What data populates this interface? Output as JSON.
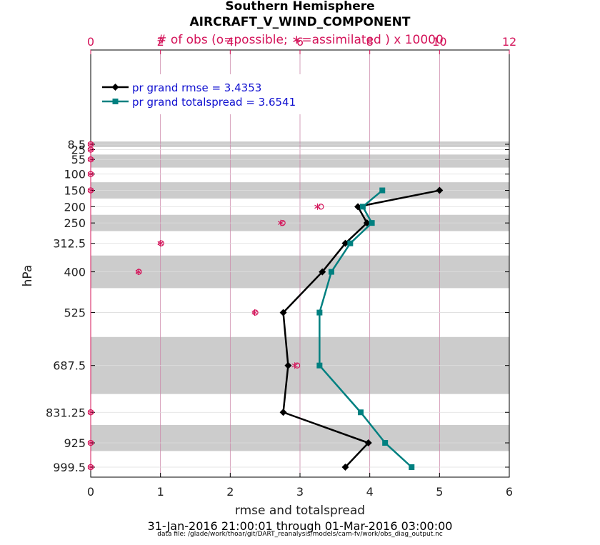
{
  "title_line1": "Southern Hemisphere",
  "title_line2": "AIRCRAFT_V_WIND_COMPONENT",
  "date_range": "31-Jan-2016 21:00:01 through 01-Mar-2016 03:00:00",
  "data_file": "data file: /glade/work/thoar/git/DART_reanalysis/models/cam-fv/work/obs_diag_output.nc",
  "colors": {
    "rmse": "#000000",
    "spread": "#008080",
    "obs": "#d4145a",
    "band": "#cccccc",
    "legend_text": "#1010d0"
  },
  "chart_data": {
    "type": "line",
    "xlabel": "rmse and totalspread",
    "ylabel": "hPa",
    "top_xlabel": "# of obs (o=possible; ∗=assimilated ) x 10000",
    "xlim": [
      0,
      6
    ],
    "top_xlim": [
      0,
      12
    ],
    "x_ticks": [
      0,
      1,
      2,
      3,
      4,
      5,
      6
    ],
    "top_x_ticks": [
      0,
      2,
      4,
      6,
      8,
      10,
      12
    ],
    "y_ticks": [
      "8.5",
      "25",
      "55",
      "100",
      "150",
      "200",
      "250",
      "312.5",
      "400",
      "525",
      "687.5",
      "831.25",
      "925",
      "999.5"
    ],
    "y_reversed": true,
    "levels": [
      8.5,
      25,
      55,
      100,
      150,
      200,
      250,
      312.5,
      400,
      525,
      687.5,
      831.25,
      925,
      999.5
    ],
    "bands_hPa": [
      [
        0,
        17
      ],
      [
        40,
        80
      ],
      [
        125,
        175
      ],
      [
        225,
        275
      ],
      [
        350,
        450
      ],
      [
        600,
        775
      ],
      [
        870,
        950
      ]
    ],
    "series": [
      {
        "name": "pr grand rmse = 3.4353",
        "marker": "diamond",
        "points": [
          [
            5.0,
            150
          ],
          [
            3.83,
            200
          ],
          [
            3.96,
            250
          ],
          [
            3.65,
            312.5
          ],
          [
            3.32,
            400
          ],
          [
            2.76,
            525
          ],
          [
            2.83,
            687.5
          ],
          [
            2.76,
            831.25
          ],
          [
            3.98,
            925
          ],
          [
            3.65,
            999.5
          ]
        ]
      },
      {
        "name": "pr grand totalspread = 3.6541",
        "marker": "square",
        "points": [
          [
            4.18,
            150
          ],
          [
            3.9,
            200
          ],
          [
            4.03,
            250
          ],
          [
            3.72,
            312.5
          ],
          [
            3.45,
            400
          ],
          [
            3.28,
            525
          ],
          [
            3.28,
            687.5
          ],
          [
            3.87,
            831.25
          ],
          [
            4.22,
            925
          ],
          [
            4.6,
            999.5
          ]
        ]
      }
    ],
    "obs_counts": [
      {
        "level": 8.5,
        "possible": 0.0,
        "assimilated": 0.0
      },
      {
        "level": 25,
        "possible": 0.0,
        "assimilated": 0.0
      },
      {
        "level": 55,
        "possible": 0.0,
        "assimilated": 0.0
      },
      {
        "level": 100,
        "possible": 0.0,
        "assimilated": 0.0
      },
      {
        "level": 150,
        "possible": 0.0,
        "assimilated": 0.0
      },
      {
        "level": 200,
        "possible": 6.6,
        "assimilated": 6.5
      },
      {
        "level": 250,
        "possible": 5.5,
        "assimilated": 5.45
      },
      {
        "level": 312.5,
        "possible": 2.02,
        "assimilated": 2.0
      },
      {
        "level": 400,
        "possible": 1.38,
        "assimilated": 1.37
      },
      {
        "level": 525,
        "possible": 4.72,
        "assimilated": 4.7
      },
      {
        "level": 687.5,
        "possible": 5.92,
        "assimilated": 5.85
      },
      {
        "level": 831.25,
        "possible": 0.0,
        "assimilated": 0.0
      },
      {
        "level": 925,
        "possible": 0.0,
        "assimilated": 0.0
      },
      {
        "level": 999.5,
        "possible": 0.0,
        "assimilated": 0.0
      }
    ],
    "grid": true,
    "legend_position": "top-left"
  }
}
